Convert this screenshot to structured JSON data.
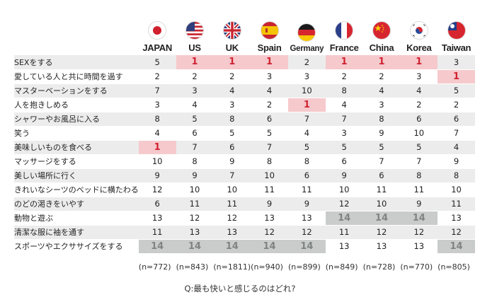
{
  "chart_data": {
    "type": "table",
    "countries": [
      {
        "name": "JAPAN",
        "n": "(n=772)",
        "flag_icon": "japan-flag-icon"
      },
      {
        "name": "US",
        "n": "(n=843)",
        "flag_icon": "us-flag-icon"
      },
      {
        "name": "UK",
        "n": "(n=1811)",
        "flag_icon": "uk-flag-icon"
      },
      {
        "name": "Spain",
        "n": "(n=940)",
        "flag_icon": "spain-flag-icon"
      },
      {
        "name": "Germany",
        "n": "(n=899)",
        "flag_icon": "germany-flag-icon"
      },
      {
        "name": "France",
        "n": "(n=849)",
        "flag_icon": "france-flag-icon"
      },
      {
        "name": "China",
        "n": "(n=728)",
        "flag_icon": "china-flag-icon"
      },
      {
        "name": "Korea",
        "n": "(n=770)",
        "flag_icon": "korea-flag-icon"
      },
      {
        "name": "Taiwan",
        "n": "(n=805)",
        "flag_icon": "taiwan-flag-icon"
      }
    ],
    "rows": [
      {
        "label": "SEXをする",
        "ranks": [
          5,
          1,
          1,
          1,
          2,
          1,
          1,
          1,
          3
        ]
      },
      {
        "label": "愛している人と共に時間を過す",
        "ranks": [
          2,
          2,
          2,
          3,
          3,
          2,
          2,
          3,
          1
        ]
      },
      {
        "label": "マスターベーションをする",
        "ranks": [
          7,
          3,
          4,
          4,
          10,
          8,
          4,
          4,
          5
        ]
      },
      {
        "label": "人を抱きしめる",
        "ranks": [
          3,
          4,
          3,
          2,
          1,
          4,
          3,
          2,
          2
        ]
      },
      {
        "label": "シャワーやお風呂に入る",
        "ranks": [
          8,
          5,
          8,
          6,
          7,
          7,
          8,
          6,
          6
        ]
      },
      {
        "label": "笑う",
        "ranks": [
          4,
          6,
          5,
          5,
          4,
          3,
          9,
          10,
          7
        ]
      },
      {
        "label": "美味しいものを食べる",
        "ranks": [
          1,
          7,
          6,
          7,
          5,
          5,
          5,
          5,
          4
        ]
      },
      {
        "label": "マッサージをする",
        "ranks": [
          10,
          8,
          9,
          8,
          8,
          6,
          7,
          7,
          9
        ]
      },
      {
        "label": "美しい場所に行く",
        "ranks": [
          9,
          9,
          7,
          10,
          6,
          9,
          6,
          8,
          8
        ]
      },
      {
        "label": "きれいなシーツのベッドに横たわる",
        "ranks": [
          12,
          10,
          10,
          11,
          11,
          10,
          11,
          11,
          10
        ]
      },
      {
        "label": "のどの渇きをいやす",
        "ranks": [
          6,
          11,
          11,
          9,
          9,
          12,
          10,
          9,
          11
        ]
      },
      {
        "label": "動物と遊ぶ",
        "ranks": [
          13,
          12,
          12,
          13,
          13,
          14,
          14,
          14,
          13
        ]
      },
      {
        "label": "清潔な服に袖を通す",
        "ranks": [
          11,
          13,
          13,
          12,
          12,
          11,
          12,
          12,
          12
        ]
      },
      {
        "label": "スポーツやエクササイズをする",
        "ranks": [
          14,
          14,
          14,
          14,
          14,
          13,
          13,
          13,
          14
        ]
      }
    ],
    "highlight_colors": {
      "top_background": "#f6c9cc",
      "top_text": "#cf2230",
      "bottom_background": "#c9cccb",
      "bottom_text": "#7f8483"
    },
    "question": "Q:最も快いと感じるのはどれ?"
  }
}
